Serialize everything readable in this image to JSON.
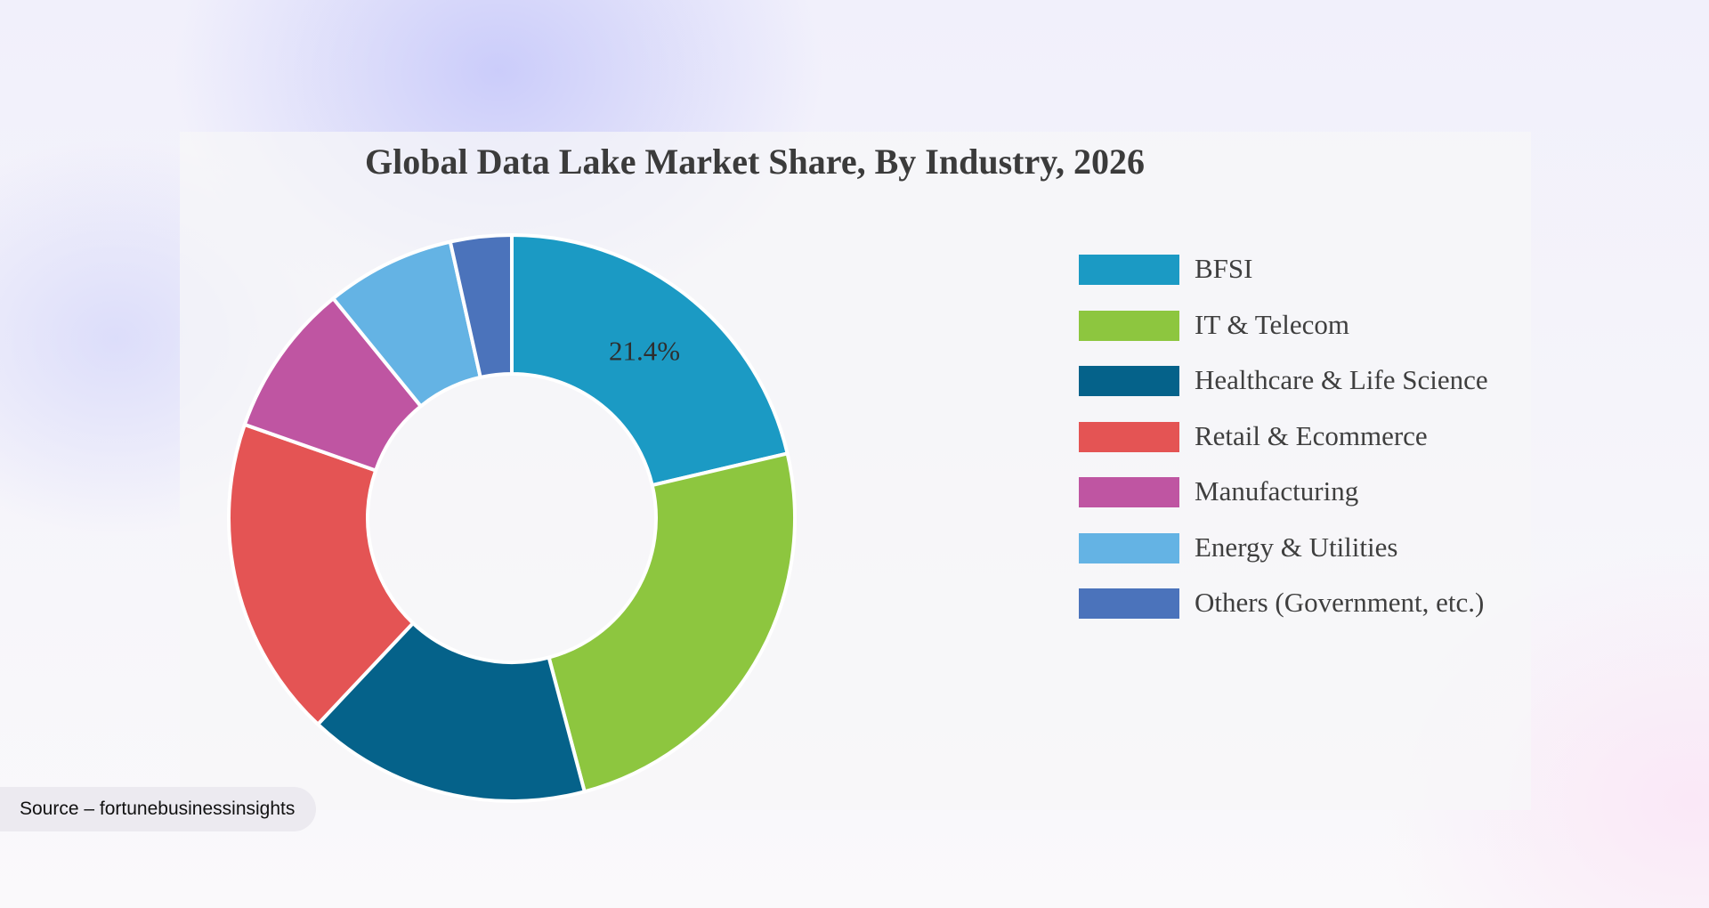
{
  "chart_data": {
    "type": "pie",
    "variant": "donut",
    "title": "Global Data Lake Market Share, By Industry, 2026",
    "categories": [
      "BFSI",
      "IT & Telecom",
      "Healthcare & Life Science",
      "Retail & Ecommerce",
      "Manufacturing",
      "Energy & Utilities",
      "Others (Government, etc.)"
    ],
    "values": [
      21.4,
      24.6,
      16.2,
      18.4,
      8.8,
      7.4,
      3.5
    ],
    "colors": [
      "#1b9ac4",
      "#8dc63f",
      "#05628a",
      "#e45454",
      "#bf55a2",
      "#64b3e4",
      "#4b73bb"
    ],
    "data_labels": [
      {
        "category": "BFSI",
        "text": "21.4%"
      }
    ],
    "legend_position": "right"
  },
  "source": "Source – fortunebusinessinsights"
}
